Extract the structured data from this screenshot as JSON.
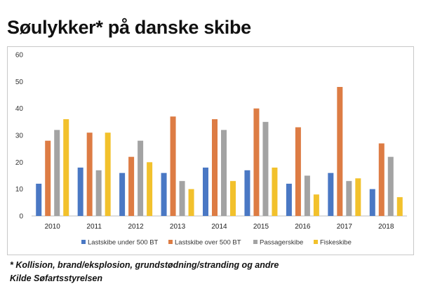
{
  "title": "Søulykker* på danske skibe",
  "footnote": "* Kollision, brand/eksplosion, grundstødning/stranding og andre",
  "source": "Kilde Søfartsstyrelsen",
  "chart_data": {
    "type": "bar",
    "categories": [
      "2010",
      "2011",
      "2012",
      "2013",
      "2014",
      "2015",
      "2016",
      "2017",
      "2018"
    ],
    "series": [
      {
        "name": "Lastskibe under 500 BT",
        "color": "#4a78c4",
        "values": [
          12,
          18,
          16,
          16,
          18,
          17,
          12,
          16,
          10
        ]
      },
      {
        "name": "Lastskibe over 500 BT",
        "color": "#dd7c44",
        "values": [
          28,
          31,
          22,
          37,
          36,
          40,
          33,
          48,
          27
        ]
      },
      {
        "name": "Passagerskibe",
        "color": "#a3a3a3",
        "values": [
          32,
          17,
          28,
          13,
          32,
          35,
          15,
          13,
          22
        ]
      },
      {
        "name": "Fiskeskibe",
        "color": "#f2c12c",
        "values": [
          36,
          31,
          20,
          10,
          13,
          18,
          8,
          14,
          7
        ]
      }
    ],
    "yticks": [
      "0",
      "10",
      "20",
      "30",
      "40",
      "50",
      "60"
    ],
    "ylim": [
      0,
      60
    ],
    "grid": false,
    "legend_position": "bottom"
  }
}
